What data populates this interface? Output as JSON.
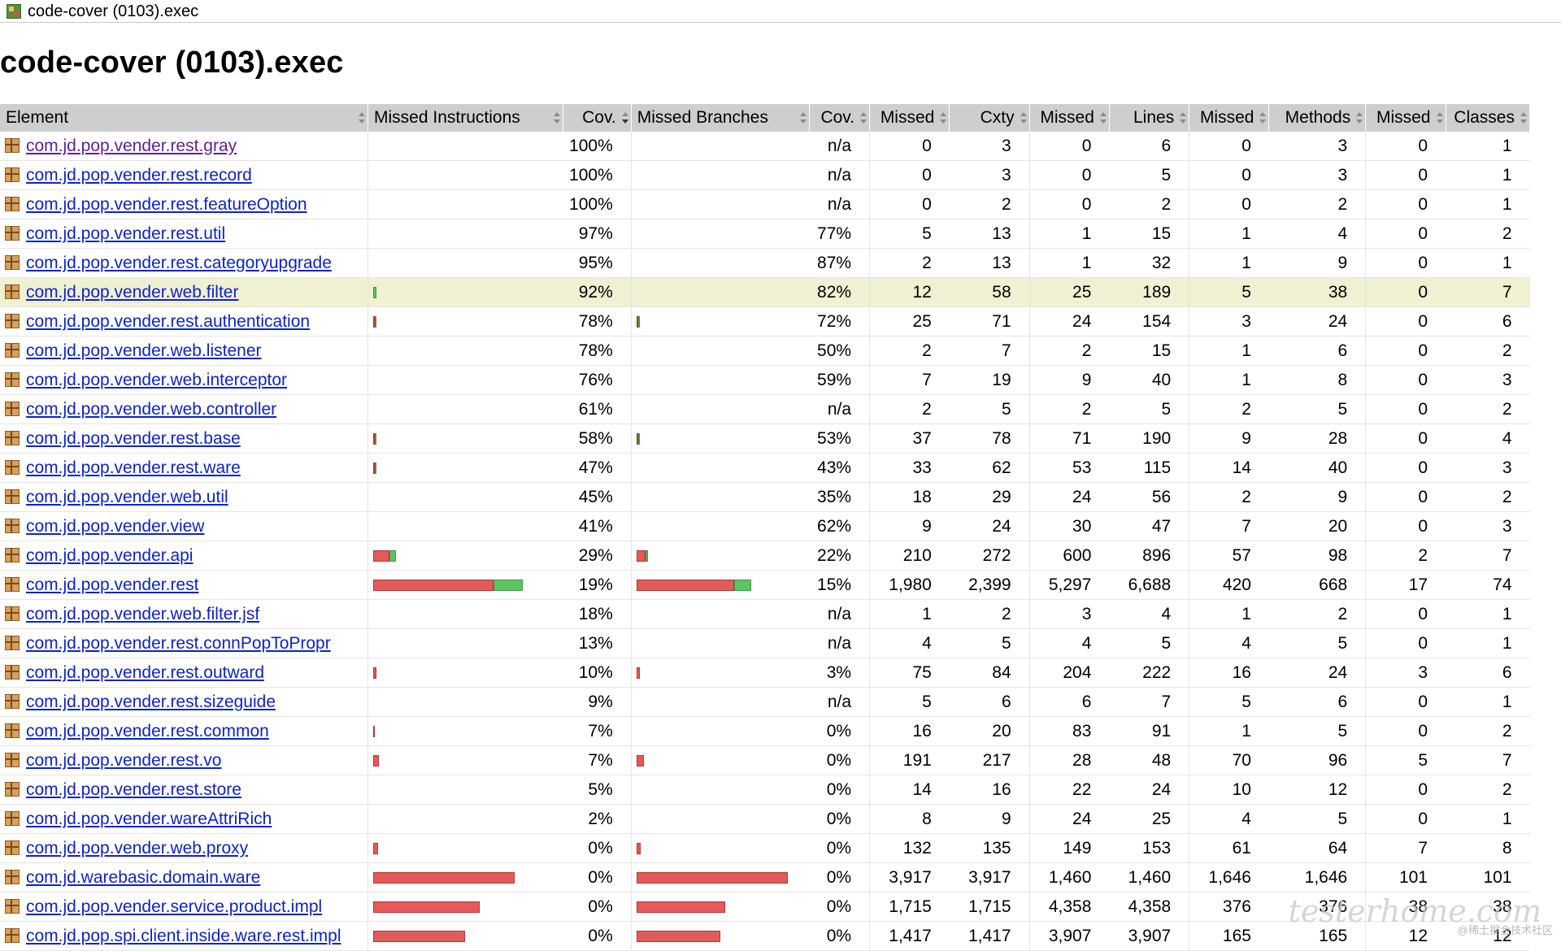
{
  "breadcrumb": {
    "title": "code-cover (0103).exec"
  },
  "page_title": "code-cover (0103).exec",
  "columns": [
    "Element",
    "Missed Instructions",
    "Cov.",
    "Missed Branches",
    "Cov.",
    "Missed",
    "Cxty",
    "Missed",
    "Lines",
    "Missed",
    "Methods",
    "Missed",
    "Classes"
  ],
  "colors": {
    "link": "#0e23c8",
    "visited": "#601f9a",
    "highlight": "#f0f0d2",
    "bar_red": "#e25a5a",
    "bar_green": "#5cc460",
    "header_bg": "#cecece"
  },
  "rows": [
    {
      "name": "com.jd.pop.vender.rest.gray",
      "visited": true,
      "ins_cov": "100%",
      "br_cov": "n/a",
      "missed_cxty": "0",
      "cxty": "3",
      "missed_lines": "0",
      "lines": "6",
      "missed_methods": "0",
      "methods": "3",
      "missed_classes": "0",
      "classes": "1",
      "ins_bar": null,
      "br_bar": null
    },
    {
      "name": "com.jd.pop.vender.rest.record",
      "ins_cov": "100%",
      "br_cov": "n/a",
      "missed_cxty": "0",
      "cxty": "3",
      "missed_lines": "0",
      "lines": "5",
      "missed_methods": "0",
      "methods": "3",
      "missed_classes": "0",
      "classes": "1",
      "ins_bar": null,
      "br_bar": null
    },
    {
      "name": "com.jd.pop.vender.rest.featureOption",
      "ins_cov": "100%",
      "br_cov": "n/a",
      "missed_cxty": "0",
      "cxty": "2",
      "missed_lines": "0",
      "lines": "2",
      "missed_methods": "0",
      "methods": "2",
      "missed_classes": "0",
      "classes": "1",
      "ins_bar": null,
      "br_bar": null
    },
    {
      "name": "com.jd.pop.vender.rest.util",
      "ins_cov": "97%",
      "br_cov": "77%",
      "missed_cxty": "5",
      "cxty": "13",
      "missed_lines": "1",
      "lines": "15",
      "missed_methods": "1",
      "methods": "4",
      "missed_classes": "0",
      "classes": "2",
      "ins_bar": null,
      "br_bar": null
    },
    {
      "name": "com.jd.pop.vender.rest.categoryupgrade",
      "ins_cov": "95%",
      "br_cov": "87%",
      "missed_cxty": "2",
      "cxty": "13",
      "missed_lines": "1",
      "lines": "32",
      "missed_methods": "1",
      "methods": "9",
      "missed_classes": "0",
      "classes": "1",
      "ins_bar": null,
      "br_bar": null
    },
    {
      "name": "com.jd.pop.vender.web.filter",
      "highlight": true,
      "ins_cov": "92%",
      "br_cov": "82%",
      "missed_cxty": "12",
      "cxty": "58",
      "missed_lines": "25",
      "lines": "189",
      "missed_methods": "5",
      "methods": "38",
      "missed_classes": "0",
      "classes": "7",
      "ins_bar": {
        "red": 0,
        "green": 4
      },
      "br_bar": null
    },
    {
      "name": "com.jd.pop.vender.rest.authentication",
      "ins_cov": "78%",
      "br_cov": "72%",
      "missed_cxty": "25",
      "cxty": "71",
      "missed_lines": "24",
      "lines": "154",
      "missed_methods": "3",
      "methods": "24",
      "missed_classes": "0",
      "classes": "6",
      "ins_bar": {
        "red": 1,
        "green": 2
      },
      "br_bar": {
        "red": 1,
        "green": 1
      }
    },
    {
      "name": "com.jd.pop.vender.web.listener",
      "ins_cov": "78%",
      "br_cov": "50%",
      "missed_cxty": "2",
      "cxty": "7",
      "missed_lines": "2",
      "lines": "15",
      "missed_methods": "1",
      "methods": "6",
      "missed_classes": "0",
      "classes": "2",
      "ins_bar": null,
      "br_bar": null
    },
    {
      "name": "com.jd.pop.vender.web.interceptor",
      "ins_cov": "76%",
      "br_cov": "59%",
      "missed_cxty": "7",
      "cxty": "19",
      "missed_lines": "9",
      "lines": "40",
      "missed_methods": "1",
      "methods": "8",
      "missed_classes": "0",
      "classes": "3",
      "ins_bar": null,
      "br_bar": null
    },
    {
      "name": "com.jd.pop.vender.web.controller",
      "ins_cov": "61%",
      "br_cov": "n/a",
      "missed_cxty": "2",
      "cxty": "5",
      "missed_lines": "2",
      "lines": "5",
      "missed_methods": "2",
      "methods": "5",
      "missed_classes": "0",
      "classes": "2",
      "ins_bar": null,
      "br_bar": null
    },
    {
      "name": "com.jd.pop.vender.rest.base",
      "ins_cov": "58%",
      "br_cov": "53%",
      "missed_cxty": "37",
      "cxty": "78",
      "missed_lines": "71",
      "lines": "190",
      "missed_methods": "9",
      "methods": "28",
      "missed_classes": "0",
      "classes": "4",
      "ins_bar": {
        "red": 2,
        "green": 2
      },
      "br_bar": {
        "red": 2,
        "green": 1
      }
    },
    {
      "name": "com.jd.pop.vender.rest.ware",
      "ins_cov": "47%",
      "br_cov": "43%",
      "missed_cxty": "33",
      "cxty": "62",
      "missed_lines": "53",
      "lines": "115",
      "missed_methods": "14",
      "methods": "40",
      "missed_classes": "0",
      "classes": "3",
      "ins_bar": {
        "red": 2,
        "green": 1
      },
      "br_bar": null
    },
    {
      "name": "com.jd.pop.vender.web.util",
      "ins_cov": "45%",
      "br_cov": "35%",
      "missed_cxty": "18",
      "cxty": "29",
      "missed_lines": "24",
      "lines": "56",
      "missed_methods": "2",
      "methods": "9",
      "missed_classes": "0",
      "classes": "2",
      "ins_bar": null,
      "br_bar": null
    },
    {
      "name": "com.jd.pop.vender.view",
      "ins_cov": "41%",
      "br_cov": "62%",
      "missed_cxty": "9",
      "cxty": "24",
      "missed_lines": "30",
      "lines": "47",
      "missed_methods": "7",
      "methods": "20",
      "missed_classes": "0",
      "classes": "3",
      "ins_bar": null,
      "br_bar": null
    },
    {
      "name": "com.jd.pop.vender.api",
      "ins_cov": "29%",
      "br_cov": "22%",
      "missed_cxty": "210",
      "cxty": "272",
      "missed_lines": "600",
      "lines": "896",
      "missed_methods": "57",
      "methods": "98",
      "missed_classes": "2",
      "classes": "7",
      "ins_bar": {
        "red": 20,
        "green": 8
      },
      "br_bar": {
        "red": 11,
        "green": 3
      }
    },
    {
      "name": "com.jd.pop.vender.rest",
      "ins_cov": "19%",
      "br_cov": "15%",
      "missed_cxty": "1,980",
      "cxty": "2,399",
      "missed_lines": "5,297",
      "lines": "6,688",
      "missed_methods": "420",
      "methods": "668",
      "missed_classes": "17",
      "classes": "74",
      "ins_bar": {
        "red": 148,
        "green": 36
      },
      "br_bar": {
        "red": 120,
        "green": 21
      }
    },
    {
      "name": "com.jd.pop.vender.web.filter.jsf",
      "ins_cov": "18%",
      "br_cov": "n/a",
      "missed_cxty": "1",
      "cxty": "2",
      "missed_lines": "3",
      "lines": "4",
      "missed_methods": "1",
      "methods": "2",
      "missed_classes": "0",
      "classes": "1",
      "ins_bar": null,
      "br_bar": null
    },
    {
      "name": "com.jd.pop.vender.rest.connPopToPropr",
      "ins_cov": "13%",
      "br_cov": "n/a",
      "missed_cxty": "4",
      "cxty": "5",
      "missed_lines": "4",
      "lines": "5",
      "missed_methods": "4",
      "methods": "5",
      "missed_classes": "0",
      "classes": "1",
      "ins_bar": null,
      "br_bar": null
    },
    {
      "name": "com.jd.pop.vender.rest.outward",
      "ins_cov": "10%",
      "br_cov": "3%",
      "missed_cxty": "75",
      "cxty": "84",
      "missed_lines": "204",
      "lines": "222",
      "missed_methods": "16",
      "methods": "24",
      "missed_classes": "3",
      "classes": "6",
      "ins_bar": {
        "red": 4,
        "green": 0
      },
      "br_bar": {
        "red": 4,
        "green": 0
      }
    },
    {
      "name": "com.jd.pop.vender.rest.sizeguide",
      "ins_cov": "9%",
      "br_cov": "n/a",
      "missed_cxty": "5",
      "cxty": "6",
      "missed_lines": "6",
      "lines": "7",
      "missed_methods": "5",
      "methods": "6",
      "missed_classes": "0",
      "classes": "1",
      "ins_bar": null,
      "br_bar": null
    },
    {
      "name": "com.jd.pop.vender.rest.common",
      "ins_cov": "7%",
      "br_cov": "0%",
      "missed_cxty": "16",
      "cxty": "20",
      "missed_lines": "83",
      "lines": "91",
      "missed_methods": "1",
      "methods": "5",
      "missed_classes": "0",
      "classes": "2",
      "ins_bar": {
        "red": 2,
        "green": 0
      },
      "br_bar": null
    },
    {
      "name": "com.jd.pop.vender.rest.vo",
      "ins_cov": "7%",
      "br_cov": "0%",
      "missed_cxty": "191",
      "cxty": "217",
      "missed_lines": "28",
      "lines": "48",
      "missed_methods": "70",
      "methods": "96",
      "missed_classes": "5",
      "classes": "7",
      "ins_bar": {
        "red": 7,
        "green": 0
      },
      "br_bar": {
        "red": 9,
        "green": 0
      }
    },
    {
      "name": "com.jd.pop.vender.rest.store",
      "ins_cov": "5%",
      "br_cov": "0%",
      "missed_cxty": "14",
      "cxty": "16",
      "missed_lines": "22",
      "lines": "24",
      "missed_methods": "10",
      "methods": "12",
      "missed_classes": "0",
      "classes": "2",
      "ins_bar": null,
      "br_bar": null
    },
    {
      "name": "com.jd.pop.vender.wareAttriRich",
      "ins_cov": "2%",
      "br_cov": "0%",
      "missed_cxty": "8",
      "cxty": "9",
      "missed_lines": "24",
      "lines": "25",
      "missed_methods": "4",
      "methods": "5",
      "missed_classes": "0",
      "classes": "1",
      "ins_bar": null,
      "br_bar": null
    },
    {
      "name": "com.jd.pop.vender.web.proxy",
      "ins_cov": "0%",
      "br_cov": "0%",
      "missed_cxty": "132",
      "cxty": "135",
      "missed_lines": "149",
      "lines": "153",
      "missed_methods": "61",
      "methods": "64",
      "missed_classes": "7",
      "classes": "8",
      "ins_bar": {
        "red": 6,
        "green": 0
      },
      "br_bar": {
        "red": 5,
        "green": 0
      }
    },
    {
      "name": "com.jd.warebasic.domain.ware",
      "ins_cov": "0%",
      "br_cov": "0%",
      "missed_cxty": "3,917",
      "cxty": "3,917",
      "missed_lines": "1,460",
      "lines": "1,460",
      "missed_methods": "1,646",
      "methods": "1,646",
      "missed_classes": "101",
      "classes": "101",
      "ins_bar": {
        "red": 174,
        "green": 0
      },
      "br_bar": {
        "red": 186,
        "green": 0
      }
    },
    {
      "name": "com.jd.pop.vender.service.product.impl",
      "ins_cov": "0%",
      "br_cov": "0%",
      "missed_cxty": "1,715",
      "cxty": "1,715",
      "missed_lines": "4,358",
      "lines": "4,358",
      "missed_methods": "376",
      "methods": "376",
      "missed_classes": "38",
      "classes": "38",
      "ins_bar": {
        "red": 131,
        "green": 0
      },
      "br_bar": {
        "red": 109,
        "green": 0
      }
    },
    {
      "name": "com.jd.pop.spi.client.inside.ware.rest.impl",
      "ins_cov": "0%",
      "br_cov": "0%",
      "missed_cxty": "1,417",
      "cxty": "1,417",
      "missed_lines": "3,907",
      "lines": "3,907",
      "missed_methods": "165",
      "methods": "165",
      "missed_classes": "12",
      "classes": "12",
      "ins_bar": {
        "red": 113,
        "green": 0
      },
      "br_bar": {
        "red": 103,
        "green": 0
      }
    }
  ],
  "watermark": {
    "script": "testerhome.com",
    "caption": "@稀土掘金技术社区"
  }
}
